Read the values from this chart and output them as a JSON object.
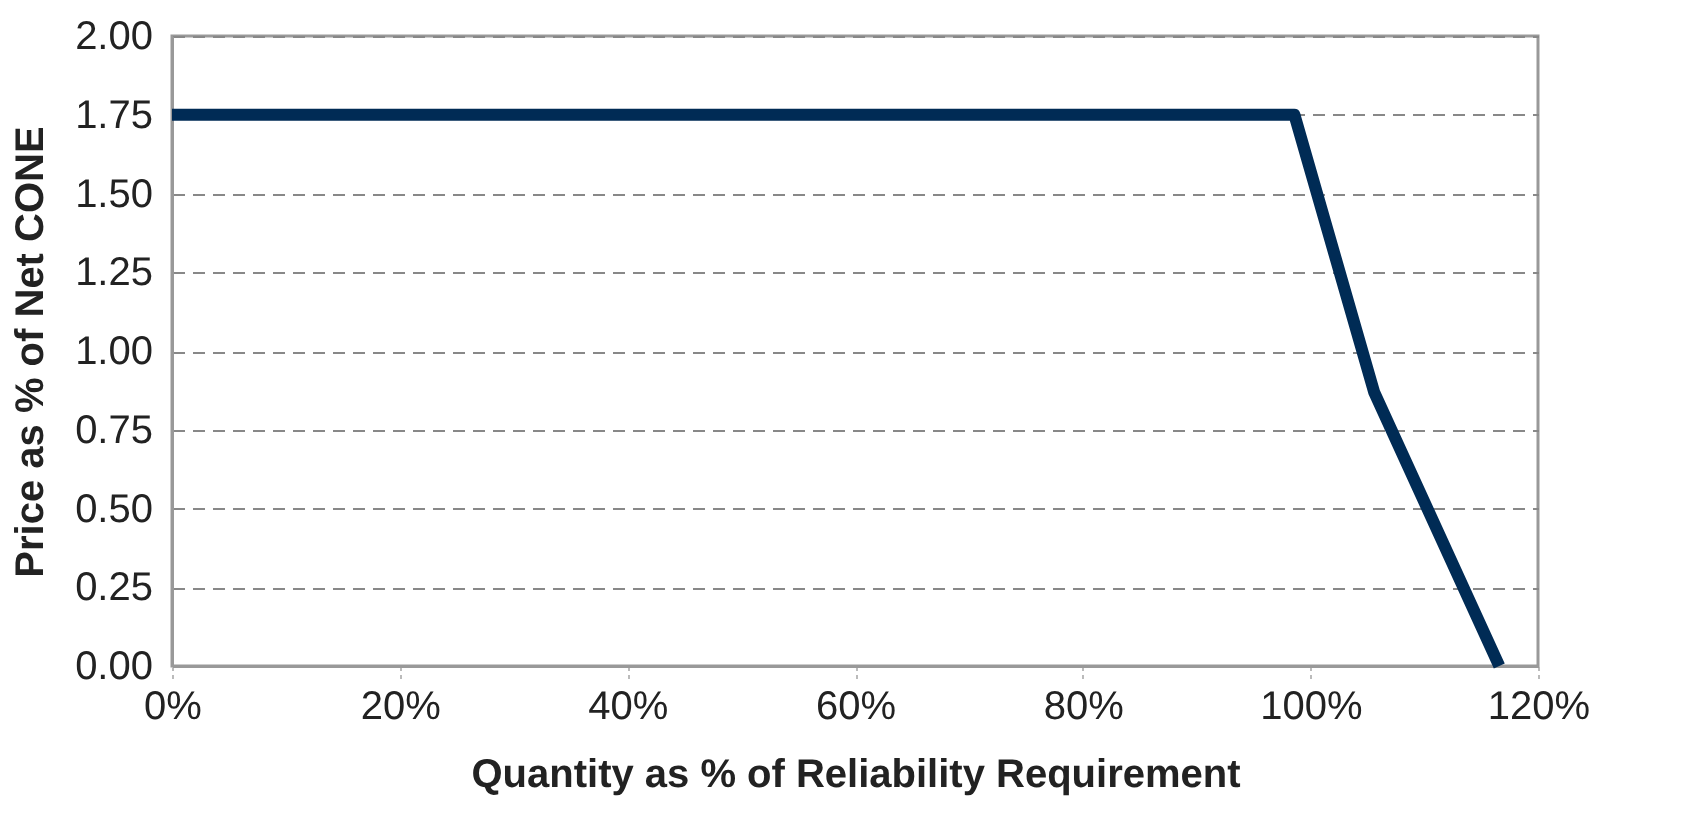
{
  "chart_data": {
    "type": "line",
    "xlabel": "Quantity as % of Reliability Requirement",
    "ylabel": "Price as % of Net CONE",
    "x": [
      0,
      98.6,
      105.6,
      116.6
    ],
    "series": [
      {
        "color": "#002b55",
        "values": [
          1.75,
          1.75,
          0.87,
          0
        ]
      }
    ],
    "xlim": [
      0,
      120
    ],
    "xticks": [
      {
        "value": 0,
        "label": "0%"
      },
      {
        "value": 20,
        "label": "20%"
      },
      {
        "value": 40,
        "label": "40%"
      },
      {
        "value": 60,
        "label": "60%"
      },
      {
        "value": 80,
        "label": "80%"
      },
      {
        "value": 100,
        "label": "100%"
      },
      {
        "value": 120,
        "label": "120%"
      }
    ],
    "ylim": [
      0,
      2
    ],
    "yticks": [
      {
        "value": 0,
        "label": "0.00"
      },
      {
        "value": 0.25,
        "label": "0.25"
      },
      {
        "value": 0.5,
        "label": "0.50"
      },
      {
        "value": 0.75,
        "label": "0.75"
      },
      {
        "value": 1,
        "label": "1.00"
      },
      {
        "value": 1.25,
        "label": "1.25"
      },
      {
        "value": 1.5,
        "label": "1.50"
      },
      {
        "value": 1.75,
        "label": "1.75"
      },
      {
        "value": 2,
        "label": "2.00"
      }
    ],
    "grid": "y",
    "marker": "none",
    "line_style": "solid"
  }
}
